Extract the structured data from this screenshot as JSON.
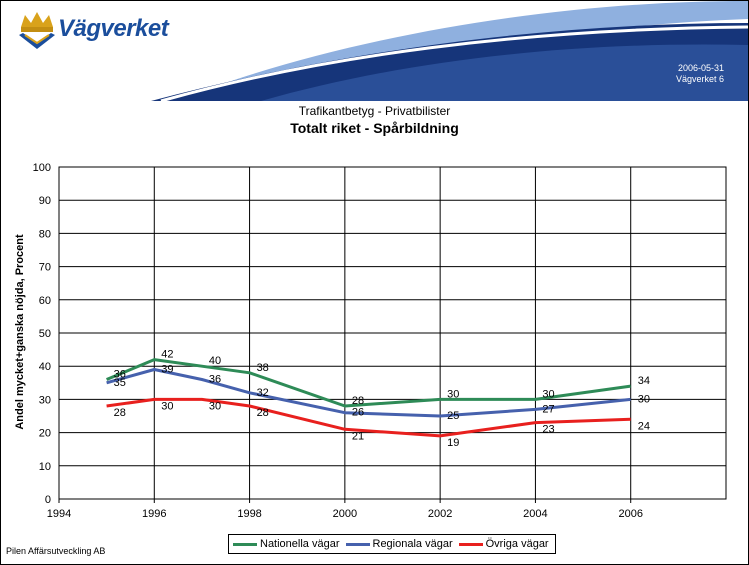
{
  "header": {
    "brand": "Vägverket",
    "date": "2006-05-31",
    "page_info": "Vägverket   6"
  },
  "footer": {
    "text": "Pilen Affärsutveckling AB"
  },
  "colors": {
    "banner_dark": "#16357a",
    "banner_light": "#5b86c7",
    "brand_text": "#1b4e9c",
    "crown": "#d9a21b"
  },
  "icons": {
    "logo": "crown-emblem-icon"
  },
  "chart_data": {
    "type": "line",
    "subtitle": "Trafikantbetyg - Privatbilister",
    "title": "Totalt riket - Spårbildning",
    "xlabel": "",
    "ylabel": "Andel mycket+ganska nöjda, Procent",
    "xlim": [
      1994,
      2008
    ],
    "ylim": [
      0,
      100
    ],
    "xticks": [
      1994,
      1996,
      1998,
      2000,
      2002,
      2004,
      2006
    ],
    "yticks": [
      0,
      10,
      20,
      30,
      40,
      50,
      60,
      70,
      80,
      90,
      100
    ],
    "grid": true,
    "legend_position": "bottom",
    "series": [
      {
        "name": "Nationella vägar",
        "color": "#2e8b57",
        "points": [
          {
            "x": 1995,
            "y": 36
          },
          {
            "x": 1996,
            "y": 42
          },
          {
            "x": 1997,
            "y": 40
          },
          {
            "x": 1998,
            "y": 38
          },
          {
            "x": 2000,
            "y": 28
          },
          {
            "x": 2002,
            "y": 30
          },
          {
            "x": 2004,
            "y": 30
          },
          {
            "x": 2006,
            "y": 34
          }
        ]
      },
      {
        "name": "Regionala vägar",
        "color": "#4661ad",
        "points": [
          {
            "x": 1995,
            "y": 35
          },
          {
            "x": 1996,
            "y": 39
          },
          {
            "x": 1997,
            "y": 36
          },
          {
            "x": 1998,
            "y": 32
          },
          {
            "x": 2000,
            "y": 26
          },
          {
            "x": 2002,
            "y": 25
          },
          {
            "x": 2004,
            "y": 27
          },
          {
            "x": 2006,
            "y": 30
          }
        ]
      },
      {
        "name": "Övriga vägar",
        "color": "#e8201e",
        "points": [
          {
            "x": 1995,
            "y": 28
          },
          {
            "x": 1996,
            "y": 30
          },
          {
            "x": 1997,
            "y": 30
          },
          {
            "x": 1998,
            "y": 28
          },
          {
            "x": 2000,
            "y": 21
          },
          {
            "x": 2002,
            "y": 19
          },
          {
            "x": 2004,
            "y": 23
          },
          {
            "x": 2006,
            "y": 24
          }
        ]
      }
    ]
  }
}
